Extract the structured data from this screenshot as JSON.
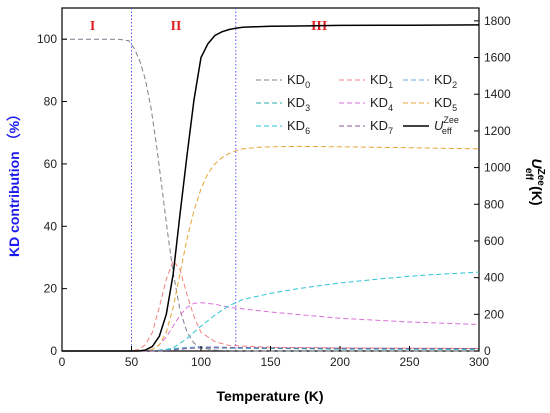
{
  "chart_data": {
    "type": "line",
    "xlabel": "Temperature (K)",
    "ylabel_left": "KD contribution （%）",
    "ylabel_right": {
      "main": "U",
      "sub": "eff",
      "sup": "Zee",
      "unit": "(K)"
    },
    "xlim": [
      0,
      300
    ],
    "ylim_left": [
      0,
      110
    ],
    "ylim_right": [
      0,
      1870
    ],
    "xticks": [
      0,
      50,
      100,
      150,
      200,
      250,
      300
    ],
    "yticks_left": [
      0,
      20,
      40,
      60,
      80,
      100
    ],
    "yticks_right": [
      0,
      200,
      400,
      600,
      800,
      1000,
      1200,
      1400,
      1600,
      1800
    ],
    "regions": [
      {
        "label": "I",
        "x": 22
      },
      {
        "label": "II",
        "x": 82
      },
      {
        "label": "III",
        "x": 185
      }
    ],
    "boundaries": [
      50,
      125
    ],
    "legend_position": "center-right",
    "series": [
      {
        "name": "KD",
        "sub": "0",
        "color": "#7f7f8f",
        "axis": "left",
        "dash": "5,3",
        "x": [
          0,
          40,
          48,
          52,
          56,
          60,
          64,
          68,
          72,
          76,
          80,
          85,
          90,
          95,
          100,
          110,
          120,
          140,
          300
        ],
        "y": [
          100,
          100,
          99.5,
          97,
          93,
          87,
          78,
          66,
          52,
          38,
          25,
          13,
          6,
          2.5,
          1,
          0.3,
          0.1,
          0,
          0
        ]
      },
      {
        "name": "KD",
        "sub": "1",
        "color": "#f08080",
        "axis": "left",
        "dash": "5,3",
        "x": [
          0,
          50,
          55,
          60,
          65,
          70,
          75,
          80,
          85,
          90,
          95,
          100,
          110,
          120,
          150,
          200,
          300
        ],
        "y": [
          0,
          0,
          0.5,
          2,
          6,
          14,
          23,
          29,
          26,
          18,
          11,
          6,
          3,
          1.8,
          1.2,
          1,
          0.8
        ]
      },
      {
        "name": "KD",
        "sub": "2",
        "color": "#6fa8dc",
        "axis": "left",
        "dash": "5,3",
        "x": [
          0,
          60,
          70,
          80,
          90,
          100,
          110,
          120,
          150,
          200,
          300
        ],
        "y": [
          0,
          0,
          0.3,
          0.8,
          1.2,
          1.3,
          1.3,
          1.2,
          1,
          0.8,
          0.6
        ]
      },
      {
        "name": "KD",
        "sub": "3",
        "color": "#20b2aa",
        "axis": "left",
        "dash": "5,3",
        "x": [
          0,
          60,
          70,
          80,
          90,
          100,
          110,
          120,
          150,
          200,
          300
        ],
        "y": [
          0,
          0,
          0.2,
          0.6,
          0.9,
          1,
          1,
          0.9,
          0.8,
          0.6,
          0.5
        ]
      },
      {
        "name": "KD",
        "sub": "4",
        "color": "#da70d6",
        "axis": "left",
        "dash": "5,3",
        "x": [
          0,
          60,
          65,
          70,
          75,
          80,
          85,
          90,
          95,
          100,
          110,
          120,
          150,
          200,
          250,
          300
        ],
        "y": [
          0,
          0,
          0.5,
          2,
          4.5,
          8,
          11.5,
          14,
          15.3,
          15.5,
          15,
          14,
          12.5,
          10.5,
          9.3,
          8.5
        ]
      },
      {
        "name": "KD",
        "sub": "5",
        "color": "#e6a532",
        "axis": "left",
        "dash": "5,3",
        "x": [
          0,
          60,
          65,
          70,
          75,
          80,
          85,
          90,
          95,
          100,
          105,
          110,
          115,
          120,
          125,
          130,
          140,
          150,
          170,
          200,
          250,
          300
        ],
        "y": [
          0,
          0,
          0.5,
          2,
          6,
          14,
          25,
          36,
          45,
          52,
          57,
          60,
          62,
          63.3,
          64.2,
          64.8,
          65.3,
          65.5,
          65.6,
          65.5,
          65.2,
          64.8
        ]
      },
      {
        "name": "KD",
        "sub": "6",
        "color": "#2ec4d4",
        "axis": "left",
        "dash": "5,3",
        "x": [
          0,
          70,
          80,
          90,
          100,
          110,
          120,
          130,
          150,
          170,
          200,
          230,
          260,
          300
        ],
        "y": [
          0,
          0,
          1,
          4,
          8,
          11.5,
          14.5,
          16.5,
          18.5,
          20,
          21.8,
          23.2,
          24.3,
          25.3
        ]
      },
      {
        "name": "KD",
        "sub": "7",
        "color": "#8a5a9e",
        "axis": "left",
        "dash": "5,3",
        "x": [
          0,
          70,
          80,
          90,
          100,
          110,
          120,
          150,
          200,
          300
        ],
        "y": [
          0,
          0,
          0.3,
          0.8,
          1,
          1.1,
          1.1,
          1,
          0.9,
          0.8
        ]
      },
      {
        "name": "U",
        "sub": "eff",
        "sup": "Zee",
        "color": "#000000",
        "axis": "right",
        "dash": "",
        "x": [
          0,
          55,
          60,
          65,
          70,
          75,
          80,
          85,
          90,
          95,
          100,
          105,
          110,
          115,
          120,
          125,
          130,
          140,
          150,
          170,
          200,
          250,
          300
        ],
        "y": [
          0,
          0,
          5,
          25,
          80,
          200,
          420,
          750,
          1070,
          1370,
          1600,
          1675,
          1720,
          1740,
          1752,
          1760,
          1765,
          1768,
          1770,
          1772,
          1775,
          1776,
          1778
        ]
      }
    ]
  }
}
